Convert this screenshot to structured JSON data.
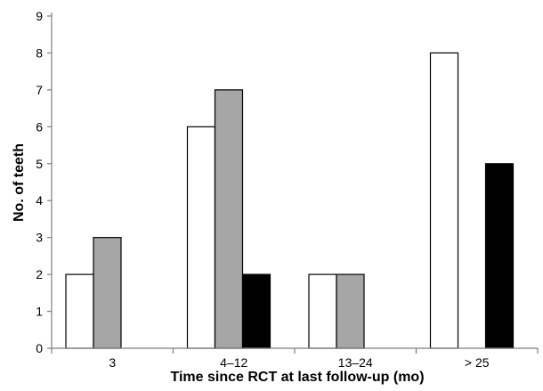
{
  "chart_data": {
    "type": "bar",
    "categories": [
      "3",
      "4–12",
      "13–24",
      "> 25"
    ],
    "series": [
      {
        "values": [
          2,
          6,
          2,
          8
        ],
        "color": "#ffffff"
      },
      {
        "values": [
          3,
          7,
          2,
          0
        ],
        "color": "#a6a6a6"
      },
      {
        "values": [
          0,
          2,
          0,
          5
        ],
        "color": "#000000"
      }
    ],
    "xlabel": "Time since RCT at last follow-up (mo)",
    "ylabel": "No. of teeth",
    "ylim": [
      0,
      9
    ],
    "yticks": [
      "0",
      "1",
      "2",
      "3",
      "4",
      "5",
      "6",
      "7",
      "8",
      "9"
    ],
    "grid": false,
    "legend": "none",
    "bar_outline_color": "#000000",
    "axis_color": "#7f7f7f"
  }
}
